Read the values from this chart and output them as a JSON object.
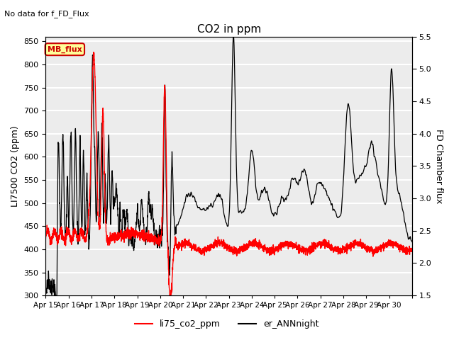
{
  "title": "CO2 in ppm",
  "suptitle": "No data for f_FD_Flux",
  "ylabel_left": "LI7500 CO2 (ppm)",
  "ylabel_right": "FD Chamber flux",
  "ylim_left": [
    300,
    860
  ],
  "ylim_right": [
    1.5,
    5.5
  ],
  "yticks_left": [
    300,
    350,
    400,
    450,
    500,
    550,
    600,
    650,
    700,
    750,
    800,
    850
  ],
  "yticks_right": [
    1.5,
    2.0,
    2.5,
    3.0,
    3.5,
    4.0,
    4.5,
    5.0,
    5.5
  ],
  "xticklabels": [
    "Apr 15",
    "Apr 16",
    "Apr 17",
    "Apr 18",
    "Apr 19",
    "Apr 20",
    "Apr 21",
    "Apr 22",
    "Apr 23",
    "Apr 24",
    "Apr 25",
    "Apr 26",
    "Apr 27",
    "Apr 28",
    "Apr 29",
    "Apr 30"
  ],
  "legend_labels": [
    "li75_co2_ppm",
    "er_ANNnight"
  ],
  "mb_flux_box_color": "#ffff99",
  "mb_flux_text_color": "#cc0000",
  "background_color": "#ececec",
  "grid_color": "white",
  "line_color_red": "red",
  "line_color_black": "black",
  "linewidth_red": 1.0,
  "linewidth_black": 0.9,
  "figsize": [
    6.4,
    4.8
  ],
  "dpi": 100
}
